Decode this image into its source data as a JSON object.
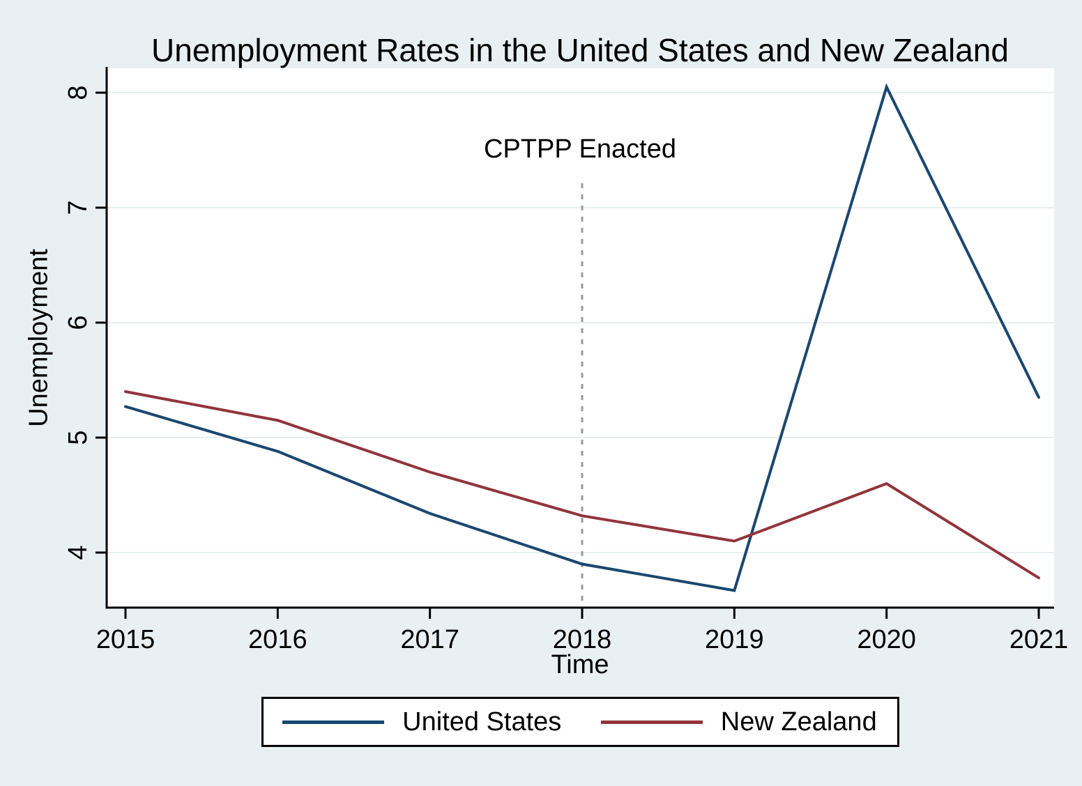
{
  "chart_data": {
    "type": "line",
    "title": "Unemployment Rates in the United States and New Zealand",
    "xlabel": "Time",
    "ylabel": "Unemployment",
    "x": [
      2015,
      2016,
      2017,
      2018,
      2019,
      2020,
      2021
    ],
    "x_ticks": [
      2015,
      2016,
      2017,
      2018,
      2019,
      2020,
      2021
    ],
    "y_ticks": [
      4,
      5,
      6,
      7,
      8
    ],
    "xlim": [
      2014.9,
      2021.1
    ],
    "ylim": [
      3.5,
      8.2
    ],
    "grid": "horizontal",
    "legend_position": "bottom",
    "y_tick_labels_rotated": true,
    "series": [
      {
        "name": "United States",
        "color": "#1a476f",
        "values": [
          5.27,
          4.88,
          4.34,
          3.9,
          3.67,
          8.05,
          5.35
        ]
      },
      {
        "name": "New Zealand",
        "color": "#90353b",
        "values": [
          5.4,
          5.15,
          4.7,
          4.32,
          4.1,
          4.6,
          3.78
        ]
      }
    ],
    "annotation": {
      "text": "CPTPP Enacted",
      "x": 2018,
      "line_style": "dotted",
      "line_color": "#999999"
    }
  },
  "colors": {
    "background": "#e9f0f3",
    "plot_background": "#ffffff",
    "gridline": "#e7eff2",
    "axis": "#000000",
    "legend_border": "#000000"
  }
}
